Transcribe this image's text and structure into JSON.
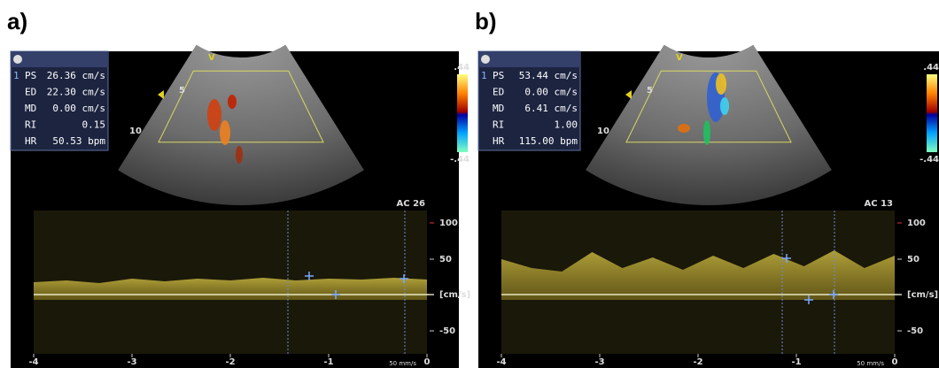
{
  "panels": [
    {
      "label": "a)",
      "measurements": {
        "marker": "1",
        "rows": [
          [
            "PS",
            "26.36 cm/s"
          ],
          [
            "ED",
            "22.30 cm/s"
          ],
          [
            "MD",
            "0.00 cm/s"
          ],
          [
            "RI",
            "0.15"
          ],
          [
            "HR",
            "50.53 bpm"
          ]
        ]
      },
      "color_scale": {
        "top": ".44",
        "bottom": "-.44"
      },
      "depth_labels": {
        "v": "V",
        "mid": "5",
        "deep": "10"
      },
      "mode_label": "AC 26",
      "y_labels": [
        "100",
        "50",
        "[cm/s]",
        "-50"
      ],
      "x_labels": [
        "-4",
        "-3",
        "-2",
        "-1",
        "0"
      ],
      "sweep_speed": "50 mm/s"
    },
    {
      "label": "b)",
      "measurements": {
        "marker": "1",
        "rows": [
          [
            "PS",
            "53.44 cm/s"
          ],
          [
            "ED",
            "0.00 cm/s"
          ],
          [
            "MD",
            "6.41 cm/s"
          ],
          [
            "RI",
            "1.00"
          ],
          [
            "HR",
            "115.00 bpm"
          ]
        ]
      },
      "color_scale": {
        "top": ".44",
        "bottom": "-.44"
      },
      "depth_labels": {
        "v": "V",
        "mid": "5",
        "deep": "10"
      },
      "mode_label": "AC 13",
      "y_labels": [
        "100",
        "50",
        "[cm/s]",
        "-50"
      ],
      "x_labels": [
        "-4",
        "-3",
        "-2",
        "-1",
        "0"
      ],
      "sweep_speed": "50 mm/s"
    }
  ]
}
